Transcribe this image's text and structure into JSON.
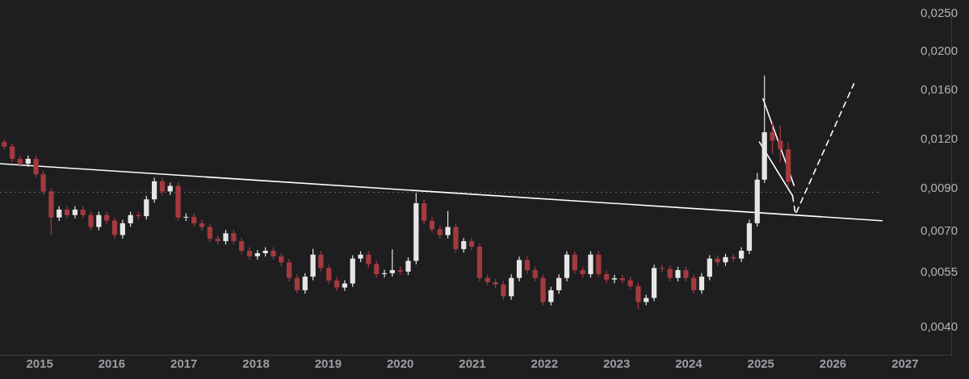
{
  "chart_data": {
    "type": "candlestick",
    "log": true,
    "xlim": [
      2014.45,
      2027.64
    ],
    "xticks": [
      2015,
      2016,
      2017,
      2018,
      2019,
      2020,
      2021,
      2022,
      2023,
      2024,
      2025,
      2026,
      2027
    ],
    "ylim": [
      0.0034,
      0.025
    ],
    "yticks": [
      {
        "value": 0.004,
        "label": "0,0040"
      },
      {
        "value": 0.0055,
        "label": "0,0055"
      },
      {
        "value": 0.007,
        "label": "0,0070"
      },
      {
        "value": 0.009,
        "label": "0,0090"
      },
      {
        "value": 0.012,
        "label": "0,0120"
      },
      {
        "value": 0.016,
        "label": "0,0160"
      },
      {
        "value": 0.02,
        "label": "0,0200"
      },
      {
        "value": 0.025,
        "label": "0,0250"
      }
    ],
    "x": [
      2014.51,
      2014.62,
      2014.73,
      2014.84,
      2014.95,
      2015.05,
      2015.16,
      2015.27,
      2015.38,
      2015.49,
      2015.6,
      2015.71,
      2015.82,
      2015.93,
      2016.04,
      2016.15,
      2016.26,
      2016.37,
      2016.48,
      2016.59,
      2016.7,
      2016.81,
      2016.92,
      2017.03,
      2017.14,
      2017.25,
      2017.36,
      2017.47,
      2017.58,
      2017.69,
      2017.8,
      2017.91,
      2018.02,
      2018.13,
      2018.24,
      2018.35,
      2018.46,
      2018.57,
      2018.68,
      2018.79,
      2018.9,
      2019.01,
      2019.12,
      2019.23,
      2019.34,
      2019.45,
      2019.56,
      2019.67,
      2019.78,
      2019.89,
      2020.0,
      2020.11,
      2020.22,
      2020.33,
      2020.44,
      2020.55,
      2020.66,
      2020.77,
      2020.88,
      2020.99,
      2021.1,
      2021.21,
      2021.32,
      2021.43,
      2021.54,
      2021.65,
      2021.76,
      2021.87,
      2021.98,
      2022.09,
      2022.2,
      2022.31,
      2022.42,
      2022.53,
      2022.64,
      2022.75,
      2022.86,
      2022.97,
      2023.08,
      2023.19,
      2023.3,
      2023.41,
      2023.52,
      2023.63,
      2023.74,
      2023.85,
      2023.96,
      2024.07,
      2024.18,
      2024.29,
      2024.4,
      2024.51,
      2024.62,
      2024.73,
      2024.84,
      2024.95,
      2025.05,
      2025.16,
      2025.27,
      2025.38
    ],
    "ohlc": [
      [
        0.0118,
        0.012,
        0.0113,
        0.0115
      ],
      [
        0.0115,
        0.0117,
        0.0105,
        0.0107
      ],
      [
        0.0107,
        0.0109,
        0.0102,
        0.0104
      ],
      [
        0.0104,
        0.0109,
        0.0102,
        0.0107
      ],
      [
        0.0107,
        0.0109,
        0.00958,
        0.00978
      ],
      [
        0.00978,
        0.00998,
        0.00866,
        0.00884
      ],
      [
        0.00884,
        0.00902,
        0.00685,
        0.00759
      ],
      [
        0.00759,
        0.00811,
        0.00744,
        0.00795
      ],
      [
        0.00795,
        0.00811,
        0.00755,
        0.0077
      ],
      [
        0.0077,
        0.00811,
        0.00755,
        0.00795
      ],
      [
        0.00795,
        0.00811,
        0.00755,
        0.0077
      ],
      [
        0.0077,
        0.00785,
        0.00704,
        0.00718
      ],
      [
        0.00718,
        0.00785,
        0.00704,
        0.0077
      ],
      [
        0.0077,
        0.00785,
        0.0073,
        0.00745
      ],
      [
        0.00745,
        0.0076,
        0.00671,
        0.00685
      ],
      [
        0.00685,
        0.00749,
        0.00671,
        0.00734
      ],
      [
        0.00734,
        0.00785,
        0.00719,
        0.0077
      ],
      [
        0.0077,
        0.00785,
        0.0075,
        0.00765
      ],
      [
        0.00765,
        0.00861,
        0.0075,
        0.00844
      ],
      [
        0.00844,
        0.00957,
        0.00827,
        0.00938
      ],
      [
        0.00938,
        0.00957,
        0.00866,
        0.00884
      ],
      [
        0.00884,
        0.00931,
        0.00866,
        0.00913
      ],
      [
        0.00913,
        0.00931,
        0.00744,
        0.00759
      ],
      [
        0.00759,
        0.00777,
        0.00744,
        0.00762
      ],
      [
        0.00762,
        0.00777,
        0.00719,
        0.00734
      ],
      [
        0.00734,
        0.00749,
        0.00704,
        0.00718
      ],
      [
        0.00718,
        0.00732,
        0.00657,
        0.0067
      ],
      [
        0.0067,
        0.00683,
        0.00648,
        0.00661
      ],
      [
        0.00661,
        0.00706,
        0.00648,
        0.00692
      ],
      [
        0.00692,
        0.00706,
        0.00648,
        0.00661
      ],
      [
        0.00661,
        0.00674,
        0.00613,
        0.00625
      ],
      [
        0.00625,
        0.00638,
        0.00593,
        0.00605
      ],
      [
        0.00605,
        0.00628,
        0.00593,
        0.00616
      ],
      [
        0.00616,
        0.00638,
        0.00604,
        0.00625
      ],
      [
        0.00625,
        0.00638,
        0.00593,
        0.00605
      ],
      [
        0.00605,
        0.00617,
        0.00572,
        0.00584
      ],
      [
        0.00584,
        0.00596,
        0.00522,
        0.00533
      ],
      [
        0.00533,
        0.00544,
        0.00486,
        0.00496
      ],
      [
        0.00496,
        0.00548,
        0.00486,
        0.00537
      ],
      [
        0.00537,
        0.00632,
        0.00526,
        0.00611
      ],
      [
        0.00611,
        0.00623,
        0.00554,
        0.00565
      ],
      [
        0.00565,
        0.00576,
        0.00515,
        0.00525
      ],
      [
        0.00525,
        0.00536,
        0.00494,
        0.00504
      ],
      [
        0.00504,
        0.00526,
        0.00494,
        0.00516
      ],
      [
        0.00516,
        0.00609,
        0.00506,
        0.00597
      ],
      [
        0.00597,
        0.00623,
        0.00585,
        0.00611
      ],
      [
        0.00611,
        0.00623,
        0.00566,
        0.00578
      ],
      [
        0.00578,
        0.0059,
        0.00534,
        0.00545
      ],
      [
        0.00545,
        0.00559,
        0.00534,
        0.00548
      ],
      [
        0.00548,
        0.0063,
        0.00537,
        0.00558
      ],
      [
        0.00558,
        0.00569,
        0.00542,
        0.00553
      ],
      [
        0.00553,
        0.00601,
        0.00542,
        0.00589
      ],
      [
        0.00589,
        0.00876,
        0.00577,
        0.00825
      ],
      [
        0.00825,
        0.00842,
        0.0073,
        0.00745
      ],
      [
        0.00745,
        0.0076,
        0.00694,
        0.00708
      ],
      [
        0.00708,
        0.00722,
        0.00671,
        0.00685
      ],
      [
        0.00685,
        0.00788,
        0.00671,
        0.00718
      ],
      [
        0.00718,
        0.00732,
        0.00618,
        0.00631
      ],
      [
        0.00631,
        0.00674,
        0.00618,
        0.00661
      ],
      [
        0.00661,
        0.00674,
        0.00627,
        0.0064
      ],
      [
        0.0064,
        0.00653,
        0.00522,
        0.00533
      ],
      [
        0.00533,
        0.00544,
        0.0051,
        0.0052
      ],
      [
        0.0052,
        0.0053,
        0.00503,
        0.00513
      ],
      [
        0.00513,
        0.00523,
        0.00469,
        0.00479
      ],
      [
        0.00479,
        0.00544,
        0.00469,
        0.00533
      ],
      [
        0.00533,
        0.00604,
        0.00522,
        0.00592
      ],
      [
        0.00592,
        0.00604,
        0.00547,
        0.00558
      ],
      [
        0.00558,
        0.00569,
        0.00522,
        0.00533
      ],
      [
        0.00533,
        0.00544,
        0.00454,
        0.00463
      ],
      [
        0.00463,
        0.00506,
        0.00454,
        0.00496
      ],
      [
        0.00496,
        0.00544,
        0.00486,
        0.00533
      ],
      [
        0.00533,
        0.00623,
        0.00522,
        0.00611
      ],
      [
        0.00611,
        0.00623,
        0.00547,
        0.00558
      ],
      [
        0.00558,
        0.00569,
        0.00534,
        0.00545
      ],
      [
        0.00545,
        0.00623,
        0.00534,
        0.00611
      ],
      [
        0.00611,
        0.00623,
        0.00534,
        0.00545
      ],
      [
        0.00545,
        0.00556,
        0.00517,
        0.00528
      ],
      [
        0.00528,
        0.00543,
        0.00517,
        0.00532
      ],
      [
        0.00532,
        0.00543,
        0.00515,
        0.00526
      ],
      [
        0.00526,
        0.00537,
        0.00498,
        0.00508
      ],
      [
        0.00508,
        0.00518,
        0.00445,
        0.00463
      ],
      [
        0.00463,
        0.00483,
        0.00454,
        0.00474
      ],
      [
        0.00474,
        0.00576,
        0.00465,
        0.00565
      ],
      [
        0.00565,
        0.00576,
        0.00551,
        0.00562
      ],
      [
        0.00562,
        0.00573,
        0.00522,
        0.00533
      ],
      [
        0.00533,
        0.00569,
        0.00522,
        0.00558
      ],
      [
        0.00558,
        0.00569,
        0.00522,
        0.00533
      ],
      [
        0.00533,
        0.00544,
        0.00486,
        0.00496
      ],
      [
        0.00496,
        0.00548,
        0.00486,
        0.00537
      ],
      [
        0.00537,
        0.00609,
        0.00526,
        0.00597
      ],
      [
        0.00597,
        0.00609,
        0.00572,
        0.00584
      ],
      [
        0.00584,
        0.00614,
        0.00572,
        0.00602
      ],
      [
        0.00602,
        0.00614,
        0.00585,
        0.00597
      ],
      [
        0.00597,
        0.00638,
        0.00585,
        0.00625
      ],
      [
        0.00625,
        0.00749,
        0.00613,
        0.00734
      ],
      [
        0.00734,
        0.00985,
        0.0072,
        0.00947
      ],
      [
        0.00947,
        0.0174,
        0.0093,
        0.0125
      ],
      [
        0.0125,
        0.0133,
        0.011,
        0.0119
      ],
      [
        0.0119,
        0.013,
        0.0105,
        0.0113
      ],
      [
        0.0113,
        0.0118,
        0.0091,
        0.00935
      ]
    ],
    "colors": [
      "#a33a40",
      "#a33a40",
      "#a33a40",
      "#e6e6e6",
      "#a33a40",
      "#a33a40",
      "#a33a40",
      "#e6e6e6",
      "#a33a40",
      "#e6e6e6",
      "#a33a40",
      "#a33a40",
      "#e6e6e6",
      "#a33a40",
      "#a33a40",
      "#e6e6e6",
      "#e6e6e6",
      "#a33a40",
      "#e6e6e6",
      "#e6e6e6",
      "#a33a40",
      "#e6e6e6",
      "#a33a40",
      "#e6e6e6",
      "#a33a40",
      "#a33a40",
      "#a33a40",
      "#a33a40",
      "#e6e6e6",
      "#a33a40",
      "#a33a40",
      "#a33a40",
      "#e6e6e6",
      "#e6e6e6",
      "#a33a40",
      "#a33a40",
      "#a33a40",
      "#a33a40",
      "#e6e6e6",
      "#e6e6e6",
      "#a33a40",
      "#a33a40",
      "#a33a40",
      "#e6e6e6",
      "#e6e6e6",
      "#e6e6e6",
      "#a33a40",
      "#a33a40",
      "#e6e6e6",
      "#e6e6e6",
      "#a33a40",
      "#e6e6e6",
      "#e6e6e6",
      "#a33a40",
      "#a33a40",
      "#a33a40",
      "#e6e6e6",
      "#a33a40",
      "#e6e6e6",
      "#a33a40",
      "#a33a40",
      "#a33a40",
      "#a33a40",
      "#a33a40",
      "#e6e6e6",
      "#e6e6e6",
      "#a33a40",
      "#a33a40",
      "#a33a40",
      "#e6e6e6",
      "#e6e6e6",
      "#e6e6e6",
      "#a33a40",
      "#a33a40",
      "#e6e6e6",
      "#a33a40",
      "#a33a40",
      "#e6e6e6",
      "#a33a40",
      "#a33a40",
      "#a33a40",
      "#e6e6e6",
      "#e6e6e6",
      "#a33a40",
      "#a33a40",
      "#e6e6e6",
      "#a33a40",
      "#a33a40",
      "#e6e6e6",
      "#e6e6e6",
      "#a33a40",
      "#e6e6e6",
      "#a33a40",
      "#e6e6e6",
      "#e6e6e6",
      "#e6e6e6",
      "#e6e6e6",
      "#a33a40",
      "#a33a40",
      "#a33a40"
    ],
    "series": [
      {
        "type": "line",
        "color": "#ffffff",
        "x": [
          2014.45,
          2026.68
        ],
        "values": [
          0.0104,
          0.00745
        ]
      },
      {
        "type": "line",
        "color": "#ffffff",
        "x": [
          2025.03,
          2025.46
        ],
        "values": [
          0.0152,
          0.00916
        ]
      },
      {
        "type": "line",
        "color": "#ffffff",
        "x": [
          2024.98,
          2025.44
        ],
        "values": [
          0.0118,
          0.00862
        ]
      },
      {
        "type": "line",
        "color": "#ffffff",
        "line_style": "dashed",
        "x": [
          2025.44,
          2025.48,
          2026.29
        ],
        "values": [
          0.00862,
          0.00773,
          0.0166
        ]
      }
    ],
    "ref_lines": [
      {
        "axis": "y",
        "value": 0.0088,
        "color": "#6a6a6a",
        "line_style": "dotted"
      }
    ]
  }
}
